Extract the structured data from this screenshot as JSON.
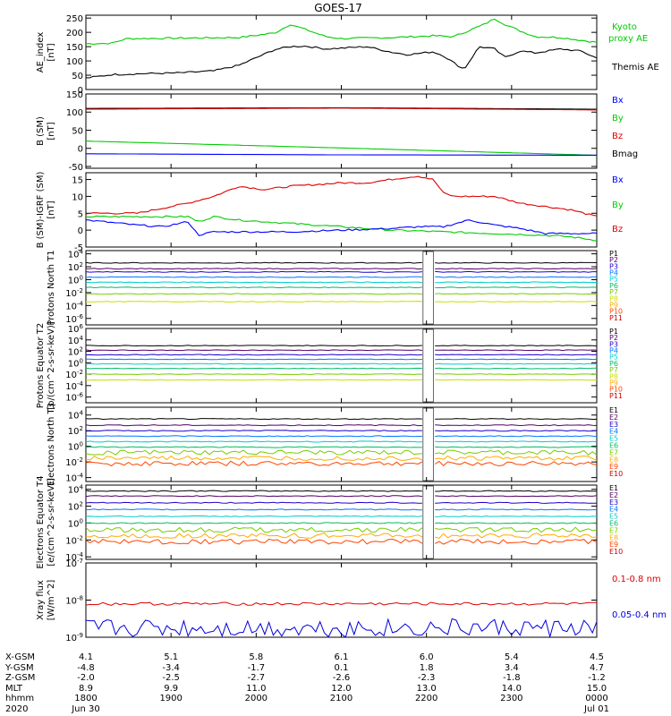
{
  "title": "GOES-17",
  "chart_data": [
    {
      "type": "line",
      "ylabel": "AE_index [nT]",
      "yticks": [
        "0",
        "50",
        "100",
        "150",
        "200",
        "250"
      ],
      "ylim": [
        0,
        260
      ],
      "legend": [
        {
          "label": "Kyoto proxy AE",
          "color": "#00cc00"
        },
        {
          "label": "Themis AE",
          "color": "#000000"
        }
      ],
      "series": [
        {
          "name": "Kyoto proxy AE",
          "color": "#00cc00",
          "x": [
            0,
            0.05,
            0.08,
            0.2,
            0.3,
            0.37,
            0.4,
            0.43,
            0.47,
            0.5,
            0.6,
            0.68,
            0.72,
            0.78,
            0.8,
            0.82,
            0.85,
            0.88,
            0.93,
            1.0
          ],
          "y": [
            160,
            162,
            178,
            180,
            182,
            198,
            228,
            210,
            185,
            178,
            182,
            188,
            185,
            228,
            248,
            228,
            205,
            185,
            182,
            165
          ]
        },
        {
          "name": "Themis AE",
          "color": "#000000",
          "x": [
            0,
            0.05,
            0.1,
            0.18,
            0.25,
            0.3,
            0.37,
            0.4,
            0.43,
            0.47,
            0.5,
            0.55,
            0.6,
            0.63,
            0.68,
            0.7,
            0.74,
            0.77,
            0.8,
            0.82,
            0.85,
            0.88,
            0.93,
            0.97,
            1.0
          ],
          "y": [
            40,
            52,
            55,
            58,
            65,
            85,
            140,
            150,
            152,
            142,
            145,
            150,
            130,
            122,
            132,
            118,
            70,
            150,
            142,
            112,
            135,
            128,
            142,
            134,
            110
          ]
        }
      ]
    },
    {
      "type": "line",
      "ylabel": "B (SM) [nT]",
      "yticks": [
        "-50",
        "0",
        "50",
        "100",
        "150"
      ],
      "ylim": [
        -55,
        150
      ],
      "legend": [
        {
          "label": "Bx",
          "color": "#0000ff"
        },
        {
          "label": "By",
          "color": "#00cc00"
        },
        {
          "label": "Bz",
          "color": "#dd0000"
        },
        {
          "label": "Bmag",
          "color": "#000000"
        }
      ],
      "series": [
        {
          "name": "Bmag",
          "color": "#000000",
          "x": [
            0,
            0.5,
            1.0
          ],
          "y": [
            110,
            112,
            108
          ]
        },
        {
          "name": "Bz",
          "color": "#dd0000",
          "x": [
            0,
            0.5,
            1.0
          ],
          "y": [
            108,
            111,
            106
          ]
        },
        {
          "name": "By",
          "color": "#00cc00",
          "x": [
            0,
            0.5,
            1.0
          ],
          "y": [
            20,
            1,
            -19
          ]
        },
        {
          "name": "Bx",
          "color": "#0000ff",
          "x": [
            0,
            0.5,
            1.0
          ],
          "y": [
            -15,
            -18,
            -19
          ]
        }
      ]
    },
    {
      "type": "line",
      "ylabel": "B (SM)-IGRF (SM) [nT]",
      "yticks": [
        "-5",
        "0",
        "5",
        "10",
        "15"
      ],
      "ylim": [
        -5,
        17
      ],
      "legend": [
        {
          "label": "Bx",
          "color": "#0000ff"
        },
        {
          "label": "By",
          "color": "#00cc00"
        },
        {
          "label": "Bz",
          "color": "#dd0000"
        }
      ],
      "series": [
        {
          "name": "Bz",
          "color": "#dd0000",
          "x": [
            0,
            0.1,
            0.15,
            0.2,
            0.25,
            0.3,
            0.35,
            0.4,
            0.5,
            0.55,
            0.62,
            0.65,
            0.68,
            0.7,
            0.72,
            0.8,
            0.85,
            0.9,
            0.95,
            1.0
          ],
          "y": [
            5,
            5,
            6.5,
            8,
            10,
            13,
            12,
            13,
            14,
            14,
            15.5,
            16,
            15,
            11,
            10,
            10,
            8,
            7,
            6,
            4
          ]
        },
        {
          "name": "By",
          "color": "#00cc00",
          "x": [
            0,
            0.1,
            0.15,
            0.2,
            0.22,
            0.25,
            0.3,
            0.4,
            0.5,
            0.6,
            0.7,
            0.8,
            0.9,
            0.95,
            1.0
          ],
          "y": [
            4,
            4,
            4,
            4,
            2.5,
            4,
            3,
            2,
            1,
            0,
            -0.5,
            -1,
            -1.5,
            -2,
            -3
          ]
        },
        {
          "name": "Bx",
          "color": "#0000ff",
          "x": [
            0,
            0.1,
            0.15,
            0.2,
            0.22,
            0.25,
            0.3,
            0.4,
            0.5,
            0.6,
            0.65,
            0.7,
            0.75,
            0.8,
            0.85,
            0.9,
            1.0
          ],
          "y": [
            3,
            1.5,
            1,
            2.5,
            -1.5,
            -0.5,
            -0.5,
            -0.5,
            0,
            0.5,
            1,
            1,
            3,
            1.5,
            0.5,
            -1,
            -1
          ]
        }
      ]
    },
    {
      "type": "line",
      "ylabel": "Protons North T1",
      "yticks": [
        "10^-6",
        "10^-4",
        "10^-2",
        "10^0",
        "10^2",
        "10^4"
      ],
      "log_range": [
        -7,
        4.5
      ],
      "gap": [
        0.66,
        0.68
      ],
      "legend": [
        {
          "label": "P1",
          "color": "#000000"
        },
        {
          "label": "P2",
          "color": "#550066"
        },
        {
          "label": "P3",
          "color": "#2200cc"
        },
        {
          "label": "P4",
          "color": "#0077ff"
        },
        {
          "label": "P5",
          "color": "#00cccc"
        },
        {
          "label": "P6",
          "color": "#00bb66"
        },
        {
          "label": "P7",
          "color": "#77cc00"
        },
        {
          "label": "P8",
          "color": "#ccdd00"
        },
        {
          "label": "P9",
          "color": "#ffaa00"
        },
        {
          "label": "P10",
          "color": "#ff4400"
        },
        {
          "label": "P11",
          "color": "#cc0000"
        }
      ],
      "series_levels": [
        2.6,
        1.7,
        1.2,
        0.4,
        -0.4,
        -1.2,
        -2.2,
        -3.4
      ]
    },
    {
      "type": "line",
      "ylabel": "Protons Equator T2 [p/(cm^2-s-sr-keV)]",
      "yticks": [
        "10^-6",
        "10^-4",
        "10^-2",
        "10^0",
        "10^2",
        "10^4",
        "10^6"
      ],
      "log_range": [
        -7,
        6
      ],
      "gap": [
        0.66,
        0.68
      ],
      "legend": [
        {
          "label": "P1",
          "color": "#000000"
        },
        {
          "label": "P2",
          "color": "#550066"
        },
        {
          "label": "P3",
          "color": "#2200cc"
        },
        {
          "label": "P4",
          "color": "#0077ff"
        },
        {
          "label": "P5",
          "color": "#00cccc"
        },
        {
          "label": "P6",
          "color": "#00bb66"
        },
        {
          "label": "P7",
          "color": "#77cc00"
        },
        {
          "label": "P8",
          "color": "#ccdd00"
        },
        {
          "label": "P9",
          "color": "#ffaa00"
        },
        {
          "label": "P10",
          "color": "#ff4400"
        },
        {
          "label": "P11",
          "color": "#cc0000"
        }
      ],
      "series_levels": [
        3.0,
        2.2,
        1.4,
        0.6,
        -0.2,
        -1.0,
        -2.0,
        -3.0
      ]
    },
    {
      "type": "line",
      "ylabel": "Electrons North T3",
      "yticks": [
        "10^-4",
        "10^-2",
        "10^0",
        "10^2",
        "10^4"
      ],
      "log_range": [
        -4.5,
        5
      ],
      "gap": [
        0.66,
        0.68
      ],
      "legend": [
        {
          "label": "E1",
          "color": "#000000"
        },
        {
          "label": "E2",
          "color": "#550066"
        },
        {
          "label": "E3",
          "color": "#2200cc"
        },
        {
          "label": "E4",
          "color": "#0077ff"
        },
        {
          "label": "E5",
          "color": "#00cccc"
        },
        {
          "label": "E6",
          "color": "#00bb66"
        },
        {
          "label": "E7",
          "color": "#77cc00"
        },
        {
          "label": "E8",
          "color": "#ffaa00"
        },
        {
          "label": "E9",
          "color": "#ff4400"
        },
        {
          "label": "E10",
          "color": "#cc0000"
        }
      ],
      "series_levels": [
        3.5,
        2.7,
        2.0,
        1.3,
        0.6,
        -0.1,
        -0.8,
        -1.5,
        -2.2
      ]
    },
    {
      "type": "line",
      "ylabel": "Electrons Equator T4 [e/(cm^2-s-sr-keV)]",
      "yticks": [
        "10^-4",
        "10^-2",
        "10^0",
        "10^2",
        "10^4"
      ],
      "log_range": [
        -4.3,
        4.5
      ],
      "gap": [
        0.66,
        0.68
      ],
      "legend": [
        {
          "label": "E1",
          "color": "#000000"
        },
        {
          "label": "E2",
          "color": "#550066"
        },
        {
          "label": "E3",
          "color": "#2200cc"
        },
        {
          "label": "E4",
          "color": "#0077ff"
        },
        {
          "label": "E5",
          "color": "#00cccc"
        },
        {
          "label": "E6",
          "color": "#00bb66"
        },
        {
          "label": "E7",
          "color": "#77cc00"
        },
        {
          "label": "E8",
          "color": "#ffaa00"
        },
        {
          "label": "E9",
          "color": "#ff4400"
        },
        {
          "label": "E10",
          "color": "#cc0000"
        }
      ],
      "series_levels": [
        3.8,
        3.2,
        2.4,
        1.6,
        0.8,
        0.0,
        -0.8,
        -1.5,
        -2.2
      ]
    },
    {
      "type": "line",
      "ylabel": "Xray flux [W/m^2]",
      "yticks": [
        "10^-9",
        "10^-8",
        "10^-7"
      ],
      "log_range": [
        -9,
        -7
      ],
      "legend": [
        {
          "label": "0.1-0.8 nm",
          "color": "#dd0000"
        },
        {
          "label": "0.05-0.4 nm",
          "color": "#0000dd"
        }
      ],
      "series_levels": [
        -8.1,
        -8.75
      ]
    }
  ],
  "time_axis": {
    "rows": [
      {
        "label": "X-GSM",
        "values": [
          "4.1",
          "5.1",
          "5.8",
          "6.1",
          "6.0",
          "5.4",
          "4.5"
        ]
      },
      {
        "label": "Y-GSM",
        "values": [
          "-4.8",
          "-3.4",
          "-1.7",
          "0.1",
          "1.8",
          "3.4",
          "4.7"
        ]
      },
      {
        "label": "Z-GSM",
        "values": [
          "-2.0",
          "-2.5",
          "-2.7",
          "-2.6",
          "-2.3",
          "-1.8",
          "-1.2"
        ]
      },
      {
        "label": "MLT",
        "values": [
          "8.9",
          "9.9",
          "11.0",
          "12.0",
          "13.0",
          "14.0",
          "15.0"
        ]
      },
      {
        "label": "hhmm",
        "values": [
          "1800",
          "1900",
          "2000",
          "2100",
          "2200",
          "2300",
          "0000"
        ]
      },
      {
        "label": "2020",
        "values": [
          "Jun 30",
          "",
          "",
          "",
          "",
          "",
          "Jul 01"
        ]
      }
    ]
  }
}
